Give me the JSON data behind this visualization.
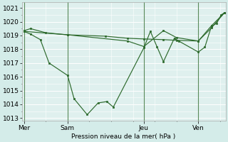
{
  "bg_color": "#d4ece9",
  "plot_bg_color": "#dff0ee",
  "grid_color": "#ffffff",
  "line_color": "#2d6a2d",
  "marker_color": "#2d6a2d",
  "vline_color": "#5a8a5a",
  "xlabel": "Pression niveau de la mer( hPa )",
  "ylim": [
    1012.8,
    1021.4
  ],
  "yticks": [
    1013,
    1014,
    1015,
    1016,
    1017,
    1018,
    1019,
    1020,
    1021
  ],
  "xtick_labels": [
    "Mer",
    "Sam",
    "Jeu",
    "Ven"
  ],
  "xtick_positions": [
    0,
    4,
    11,
    16
  ],
  "xlim": [
    -0.2,
    18.5
  ],
  "vlines": [
    0,
    4,
    11,
    16
  ],
  "series": [
    {
      "x": [
        0.0,
        0.6,
        1.5,
        2.3,
        4.0,
        4.6,
        5.8,
        6.8,
        7.6,
        8.2,
        11.0,
        11.6,
        12.2,
        12.8,
        13.8,
        14.2,
        16.0,
        16.6,
        17.2,
        17.7,
        18.1,
        18.4
      ],
      "y": [
        1019.3,
        1019.1,
        1018.7,
        1017.0,
        1016.1,
        1014.4,
        1013.25,
        1014.1,
        1014.2,
        1013.8,
        1018.1,
        1019.3,
        1018.2,
        1017.1,
        1018.8,
        1018.6,
        1017.8,
        1018.15,
        1019.65,
        1019.9,
        1020.5,
        1020.65
      ]
    },
    {
      "x": [
        0.0,
        0.6,
        2.0,
        4.0,
        7.5,
        9.5,
        11.0,
        12.8,
        14.0,
        16.0,
        17.2,
        18.4
      ],
      "y": [
        1019.35,
        1019.5,
        1019.2,
        1019.05,
        1018.95,
        1018.8,
        1018.75,
        1018.7,
        1018.65,
        1018.6,
        1019.55,
        1020.65
      ]
    },
    {
      "x": [
        0.0,
        4.0,
        9.5,
        11.0,
        12.8,
        14.0,
        16.0,
        17.2,
        18.4
      ],
      "y": [
        1019.3,
        1019.05,
        1018.6,
        1018.2,
        1019.35,
        1018.85,
        1018.6,
        1019.7,
        1020.65
      ]
    }
  ]
}
